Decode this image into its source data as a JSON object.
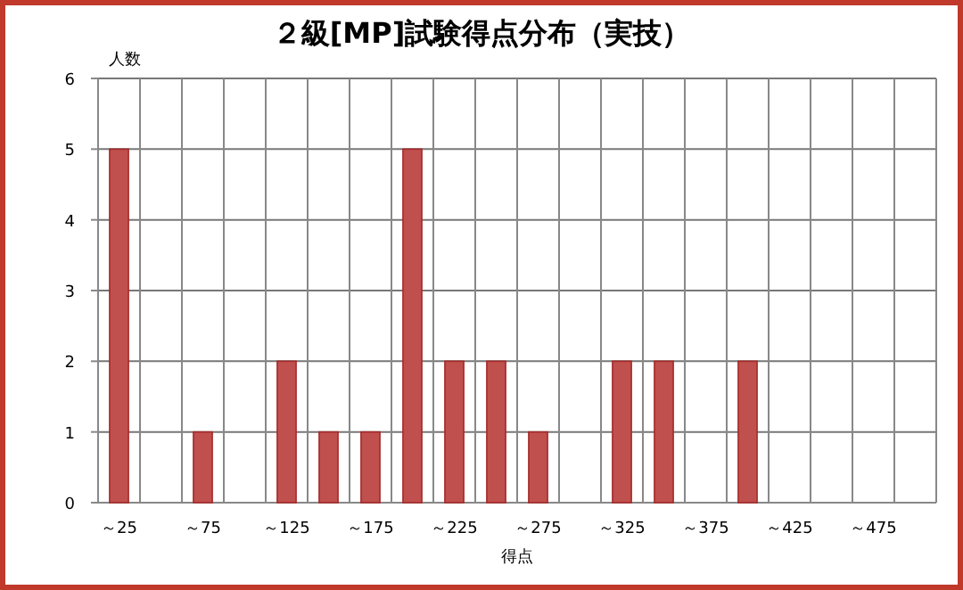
{
  "chart_data": {
    "type": "bar",
    "title": "２級[MP]試験得点分布（実技）",
    "xlabel": "得点",
    "ylabel": "人数",
    "categories": [
      "～25",
      null,
      "～75",
      null,
      "～125",
      null,
      "～175",
      null,
      "～225",
      null,
      "～275",
      null,
      "～325",
      null,
      "～375",
      null,
      "～425",
      null,
      "～475",
      null
    ],
    "values": [
      5,
      0,
      1,
      0,
      2,
      1,
      1,
      5,
      2,
      2,
      1,
      0,
      2,
      2,
      0,
      2,
      0,
      0,
      0,
      0
    ],
    "color": "#c0504d",
    "ylim": [
      0,
      6
    ],
    "yticks": [
      0,
      1,
      2,
      3,
      4,
      5,
      6
    ],
    "grid": true
  }
}
